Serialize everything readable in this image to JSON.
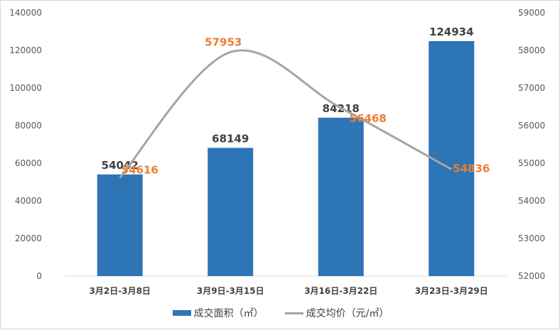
{
  "chart_data": {
    "type": "bar+line",
    "categories": [
      "3月2日-3月8日",
      "3月9日-3月15日",
      "3月16日-3月22日",
      "3月23日-3月29日"
    ],
    "series": [
      {
        "name": "成交面积（㎡）",
        "type": "bar",
        "axis": "left",
        "color": "#2e75b6",
        "values": [
          54042,
          68149,
          84218,
          124934
        ]
      },
      {
        "name": "成交均价（元/㎡）",
        "type": "line",
        "axis": "right",
        "color": "#a5a5a5",
        "label_color": "#ed7d31",
        "smooth": true,
        "values": [
          54616,
          57953,
          56468,
          54836
        ]
      }
    ],
    "y_left": {
      "lim": [
        0,
        140000
      ],
      "ticks": [
        0,
        20000,
        40000,
        60000,
        80000,
        100000,
        120000,
        140000
      ]
    },
    "y_right": {
      "lim": [
        52000,
        59000
      ],
      "ticks": [
        52000,
        53000,
        54000,
        55000,
        56000,
        57000,
        58000,
        59000
      ]
    },
    "grid": false,
    "legend": "bottom"
  }
}
